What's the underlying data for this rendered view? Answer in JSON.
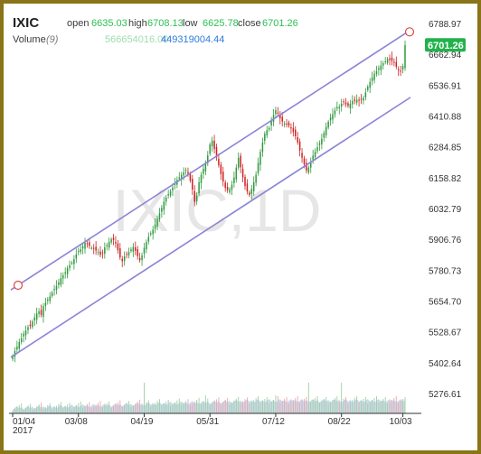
{
  "header": {
    "symbol": "IXIC",
    "open_label": "open",
    "open_value": "6635.03",
    "high_label": "high",
    "high_value": "6708.13",
    "low_label": "low",
    "low_value": "6625.78",
    "close_label": "close",
    "close_value": "6701.26",
    "volume_label": "Volume",
    "volume_param": "(9)",
    "volume_value": "566654016.00",
    "volume_ma_value": "449319004.44"
  },
  "watermark": "IXIC,1D",
  "last_price_tag": "6701.26",
  "colors": {
    "up": "#2e9a3c",
    "down": "#d02020",
    "channel": "#8b84d6",
    "last_price_tag": "#22b24c",
    "volume_area": "#b9cde6",
    "frame": "#8a7418"
  },
  "chart_data": {
    "type": "candlestick",
    "title": "IXIC",
    "interval": "1D",
    "x_tick_labels": [
      "01/04",
      "03/08",
      "04/19",
      "05/31",
      "07/12",
      "08/22",
      "10/03"
    ],
    "x_tick_subtitle": "2017",
    "y_tick_labels": [
      "6788.97",
      "6662.94",
      "6536.91",
      "6410.88",
      "6284.85",
      "6158.82",
      "6032.79",
      "5906.76",
      "5780.73",
      "5654.70",
      "5528.67",
      "5402.64",
      "5276.61"
    ],
    "ylim": [
      5250,
      6820
    ],
    "last_close": 6701.26,
    "series_close": [
      5429,
      5450,
      5468,
      5487,
      5502,
      5521,
      5534,
      5548,
      5552,
      5571,
      5588,
      5604,
      5612,
      5598,
      5634,
      5648,
      5661,
      5673,
      5689,
      5704,
      5716,
      5731,
      5749,
      5760,
      5772,
      5789,
      5802,
      5811,
      5826,
      5845,
      5859,
      5866,
      5878,
      5893,
      5889,
      5880,
      5872,
      5868,
      5861,
      5855,
      5843,
      5852,
      5874,
      5883,
      5896,
      5907,
      5904,
      5890,
      5862,
      5833,
      5817,
      5837,
      5845,
      5855,
      5866,
      5876,
      5860,
      5838,
      5822,
      5841,
      5872,
      5896,
      5917,
      5932,
      5946,
      5968,
      5990,
      6013,
      6035,
      6061,
      6078,
      6092,
      6104,
      6119,
      6134,
      6150,
      6160,
      6170,
      6181,
      6190,
      6175,
      6146,
      6110,
      6060,
      6085,
      6140,
      6170,
      6195,
      6220,
      6250,
      6295,
      6310,
      6276,
      6242,
      6210,
      6173,
      6143,
      6117,
      6108,
      6112,
      6130,
      6160,
      6200,
      6240,
      6201,
      6160,
      6125,
      6102,
      6088,
      6113,
      6140,
      6171,
      6219,
      6264,
      6302,
      6338,
      6353,
      6362,
      6391,
      6415,
      6435,
      6421,
      6401,
      6388,
      6380,
      6376,
      6371,
      6360,
      6345,
      6328,
      6303,
      6270,
      6240,
      6213,
      6188,
      6200,
      6225,
      6249,
      6265,
      6283,
      6299,
      6318,
      6342,
      6366,
      6387,
      6405,
      6418,
      6433,
      6448,
      6447,
      6461,
      6470,
      6459,
      6452,
      6461,
      6472,
      6473,
      6477,
      6473,
      6480,
      6485,
      6507,
      6531,
      6550,
      6568,
      6584,
      6594,
      6606,
      6617,
      6626,
      6634,
      6644,
      6640,
      6636,
      6628,
      6612,
      6598,
      6595,
      6615,
      6701
    ],
    "channel_upper": [
      [
        0,
        5700
      ],
      [
        179,
        6762
      ]
    ],
    "channel_lower": [
      [
        0,
        5425
      ],
      [
        179,
        6487
      ]
    ],
    "volume_ma_shape": "rising-then-flat"
  }
}
